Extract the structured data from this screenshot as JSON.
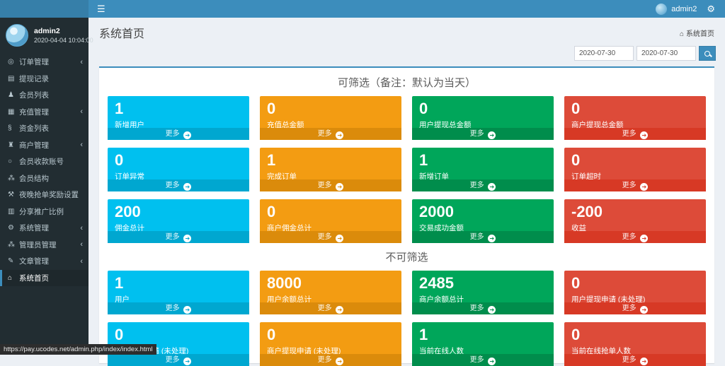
{
  "colors": {
    "topbar": "#3c8dbc",
    "logo_bg": "#367fa9",
    "sidebar_bg": "#222d32",
    "content_bg": "#ecf0f5",
    "aqua": "#00c0ef",
    "aqua_dark": "#00a7d0",
    "yellow": "#f39c12",
    "yellow_dark": "#db8b0b",
    "green": "#00a65a",
    "green_dark": "#008d4c",
    "red": "#dd4b39",
    "red_dark": "#d73925"
  },
  "topbar": {
    "hamburger_glyph": "☰",
    "user_name": "admin2",
    "gears_glyph": "⚙"
  },
  "sidebar": {
    "user": {
      "name": "admin2",
      "datetime": "2020-04-04 10:04:00"
    },
    "items": [
      {
        "id": "orders",
        "label": "订单管理",
        "icon": "dot-circle",
        "glyph": "◎",
        "submenu": true,
        "active": false
      },
      {
        "id": "withdraw-records",
        "label": "提现记录",
        "icon": "credit-card",
        "glyph": "▤",
        "submenu": false,
        "active": false
      },
      {
        "id": "member-list",
        "label": "会员列表",
        "icon": "user",
        "glyph": "♟",
        "submenu": false,
        "active": false
      },
      {
        "id": "recharge",
        "label": "充值管理",
        "icon": "image",
        "glyph": "▦",
        "submenu": true,
        "active": false
      },
      {
        "id": "funds-list",
        "label": "资金列表",
        "icon": "funds",
        "glyph": "§",
        "submenu": false,
        "active": false
      },
      {
        "id": "merchant",
        "label": "商户管理",
        "icon": "bank",
        "glyph": "♜",
        "submenu": true,
        "active": false
      },
      {
        "id": "member-account",
        "label": "会员收款账号",
        "icon": "circle-o",
        "glyph": "○",
        "submenu": false,
        "active": false
      },
      {
        "id": "member-structure",
        "label": "会员结构",
        "icon": "users",
        "glyph": "⁂",
        "submenu": false,
        "active": false
      },
      {
        "id": "night-reward",
        "label": "夜晚抢单奖励设置",
        "icon": "wrench",
        "glyph": "⚒",
        "submenu": false,
        "active": false
      },
      {
        "id": "share-ratio",
        "label": "分享推广比例",
        "icon": "chart",
        "glyph": "▥",
        "submenu": false,
        "active": false
      },
      {
        "id": "system",
        "label": "系统管理",
        "icon": "gear",
        "glyph": "⚙",
        "submenu": true,
        "active": false
      },
      {
        "id": "admin",
        "label": "管理员管理",
        "icon": "users",
        "glyph": "⁂",
        "submenu": true,
        "active": false
      },
      {
        "id": "article",
        "label": "文章管理",
        "icon": "edit",
        "glyph": "✎",
        "submenu": true,
        "active": false
      },
      {
        "id": "home",
        "label": "系统首页",
        "icon": "home",
        "glyph": "⌂",
        "submenu": false,
        "active": true
      }
    ]
  },
  "header": {
    "title": "系统首页",
    "breadcrumb_home_glyph": "⌂",
    "breadcrumb": "系统首页"
  },
  "filters": {
    "date_from": "2020-07-30",
    "date_to": "2020-07-30"
  },
  "main": {
    "more_label": "更多",
    "more_arrow_glyph": "➔",
    "sections": [
      {
        "title": "可筛选（备注：默认为当天）",
        "tiles": [
          {
            "value": "1",
            "label": "新增用户",
            "color": "aqua"
          },
          {
            "value": "0",
            "label": "充值总金额",
            "color": "yellow"
          },
          {
            "value": "0",
            "label": "用户提现总金额",
            "color": "green"
          },
          {
            "value": "0",
            "label": "商户提现总金额",
            "color": "red"
          },
          {
            "value": "0",
            "label": "订单异常",
            "color": "aqua"
          },
          {
            "value": "1",
            "label": "完成订单",
            "color": "yellow"
          },
          {
            "value": "1",
            "label": "新增订单",
            "color": "green"
          },
          {
            "value": "0",
            "label": "订单超时",
            "color": "red"
          },
          {
            "value": "200",
            "label": "佣金总计",
            "color": "aqua"
          },
          {
            "value": "0",
            "label": "商户佣金总计",
            "color": "yellow"
          },
          {
            "value": "2000",
            "label": "交易成功金额",
            "color": "green"
          },
          {
            "value": "-200",
            "label": "收益",
            "color": "red"
          }
        ]
      },
      {
        "title": "不可筛选",
        "tiles": [
          {
            "value": "1",
            "label": "用户",
            "color": "aqua"
          },
          {
            "value": "8000",
            "label": "用户余额总计",
            "color": "yellow"
          },
          {
            "value": "2485",
            "label": "商户余额总计",
            "color": "green"
          },
          {
            "value": "0",
            "label": "用户提现申请 (未处理)",
            "color": "red"
          },
          {
            "value": "0",
            "label": "用户充值申请 (未处理)",
            "color": "aqua"
          },
          {
            "value": "0",
            "label": "商户提现申请 (未处理)",
            "color": "yellow"
          },
          {
            "value": "1",
            "label": "当前在线人数",
            "color": "green"
          },
          {
            "value": "0",
            "label": "当前在线抢单人数",
            "color": "red"
          }
        ]
      }
    ]
  },
  "statusbar": {
    "url": "https://pay.ucodes.net/admin.php/index/index.html"
  }
}
